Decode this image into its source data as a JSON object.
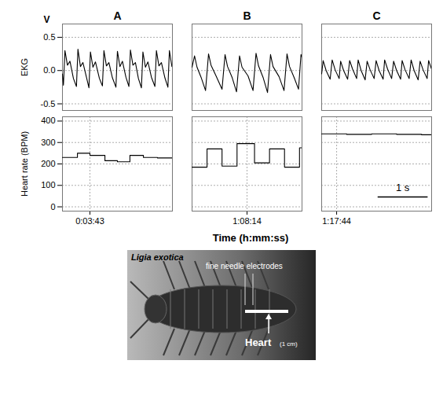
{
  "chart_data": [
    {
      "type": "line",
      "title": "A",
      "ylabel": "EKG",
      "annotations": [
        "V"
      ],
      "color": "#000000",
      "line_style": "solid",
      "grid": true,
      "tick_labels": "y",
      "xlim": [
        0,
        2.2
      ],
      "ylim": [
        -0.6,
        0.7
      ],
      "yticks": [
        -0.5,
        {
          "value": 0,
          "label": "0.0"
        },
        0.5
      ],
      "x": [
        0.0,
        0.02,
        0.05,
        0.1,
        0.15,
        0.22,
        0.28,
        0.31,
        0.36,
        0.41,
        0.48,
        0.53,
        0.56,
        0.61,
        0.66,
        0.74,
        0.8,
        0.83,
        0.88,
        0.93,
        1.0,
        1.07,
        1.1,
        1.15,
        1.2,
        1.27,
        1.33,
        1.36,
        1.41,
        1.46,
        1.52,
        1.58,
        1.61,
        1.66,
        1.71,
        1.78,
        1.85,
        1.88,
        1.93,
        1.98,
        2.05,
        2.11,
        2.14,
        2.19,
        2.2
      ],
      "values": [
        -0.05,
        -0.22,
        0.3,
        0.08,
        0.14,
        -0.12,
        -0.24,
        0.32,
        0.06,
        0.12,
        -0.1,
        -0.26,
        0.28,
        0.05,
        0.13,
        -0.12,
        -0.23,
        0.3,
        0.07,
        0.12,
        -0.11,
        -0.25,
        0.29,
        0.06,
        0.14,
        -0.1,
        -0.24,
        0.31,
        0.08,
        0.12,
        -0.12,
        -0.26,
        0.28,
        0.05,
        0.13,
        -0.1,
        -0.24,
        0.3,
        0.07,
        0.12,
        -0.11,
        -0.25,
        0.3,
        0.06,
        0.08
      ]
    },
    {
      "type": "line",
      "title": "B",
      "color": "#000000",
      "line_style": "solid",
      "grid": true,
      "tick_labels": false,
      "xlim": [
        0,
        2.2
      ],
      "ylim": [
        -0.6,
        0.7
      ],
      "yticks": [
        -0.5,
        {
          "value": 0,
          "label": "0.0"
        },
        0.5
      ],
      "x": [
        0.0,
        0.05,
        0.1,
        0.18,
        0.27,
        0.33,
        0.38,
        0.48,
        0.6,
        0.66,
        0.71,
        0.8,
        0.89,
        0.95,
        1.0,
        1.12,
        1.22,
        1.28,
        1.33,
        1.42,
        1.51,
        1.57,
        1.62,
        1.74,
        1.84,
        1.9,
        1.95,
        2.04,
        2.13,
        2.18,
        2.2
      ],
      "values": [
        0.05,
        0.22,
        0.05,
        -0.1,
        -0.3,
        0.25,
        0.08,
        -0.08,
        -0.28,
        0.24,
        0.06,
        -0.1,
        -0.32,
        0.22,
        0.05,
        -0.08,
        -0.3,
        0.26,
        0.07,
        -0.1,
        -0.33,
        0.24,
        0.06,
        -0.09,
        -0.3,
        0.25,
        0.06,
        -0.1,
        -0.28,
        0.24,
        0.2
      ]
    },
    {
      "type": "line",
      "title": "C",
      "color": "#000000",
      "line_style": "solid",
      "grid": true,
      "tick_labels": false,
      "xlim": [
        0,
        2.2
      ],
      "ylim": [
        -0.6,
        0.7
      ],
      "yticks": [
        -0.5,
        {
          "value": 0,
          "label": "0.0"
        },
        0.5
      ],
      "x": [
        0.0,
        0.03,
        0.09,
        0.17,
        0.21,
        0.27,
        0.35,
        0.38,
        0.44,
        0.52,
        0.56,
        0.62,
        0.7,
        0.73,
        0.79,
        0.87,
        0.91,
        0.97,
        1.05,
        1.09,
        1.15,
        1.23,
        1.26,
        1.32,
        1.4,
        1.44,
        1.5,
        1.58,
        1.61,
        1.67,
        1.75,
        1.79,
        1.85,
        1.93,
        1.97,
        2.03,
        2.11,
        2.14,
        2.2
      ],
      "values": [
        -0.05,
        0.15,
        0.0,
        -0.13,
        0.16,
        0.01,
        -0.12,
        0.14,
        0.0,
        -0.13,
        0.15,
        0.02,
        -0.12,
        0.16,
        0.0,
        -0.14,
        0.14,
        0.01,
        -0.12,
        0.15,
        0.0,
        -0.13,
        0.16,
        0.02,
        -0.12,
        0.14,
        0.0,
        -0.13,
        0.15,
        0.01,
        -0.12,
        0.16,
        0.0,
        -0.14,
        0.14,
        0.01,
        -0.12,
        0.15,
        0.02
      ]
    },
    {
      "type": "line",
      "ylabel": "Heart rate (BPM)",
      "color": "#000000",
      "line_style": "step",
      "grid": true,
      "xlim": [
        0,
        2.2
      ],
      "ylim": [
        -20,
        420
      ],
      "yticks": [
        0,
        100,
        200,
        300,
        400
      ],
      "xticks": [
        {
          "value": 0.55,
          "label": "0:03:43"
        }
      ],
      "x": [
        0,
        0.3,
        0.55,
        0.85,
        1.1,
        1.35,
        1.62,
        1.9,
        2.2
      ],
      "values": [
        230,
        250,
        240,
        215,
        210,
        240,
        230,
        228,
        228
      ]
    },
    {
      "type": "line",
      "color": "#000000",
      "line_style": "step",
      "grid": true,
      "tick_labels": "x",
      "xlim": [
        0,
        2.2
      ],
      "ylim": [
        -20,
        420
      ],
      "yticks": [
        0,
        100,
        200,
        300,
        400
      ],
      "xticks": [
        {
          "value": 1.1,
          "label": "1:08:14"
        }
      ],
      "x": [
        0,
        0.3,
        0.6,
        0.9,
        1.25,
        1.55,
        1.85,
        2.15,
        2.2
      ],
      "values": [
        185,
        270,
        190,
        295,
        205,
        270,
        185,
        275,
        275
      ]
    },
    {
      "type": "line",
      "color": "#000000",
      "line_style": "step",
      "grid": true,
      "tick_labels": "x",
      "xlim": [
        0,
        2.2
      ],
      "ylim": [
        -20,
        420
      ],
      "yticks": [
        0,
        100,
        200,
        300,
        400
      ],
      "xticks": [
        {
          "value": 0.3,
          "label": "1:17:44"
        }
      ],
      "x": [
        0,
        0.5,
        1.0,
        1.5,
        2.0,
        2.2
      ],
      "values": [
        340,
        338,
        340,
        338,
        336,
        336
      ]
    }
  ],
  "figure": {
    "xlabel": "Time (h:mm:ss)",
    "scale_bar": {
      "value": 1,
      "label": "1 s"
    }
  },
  "photo": {
    "species": "Ligia exotica",
    "electrodes": "fine needle electrodes",
    "heart": "Heart",
    "scale": "(1 cm)"
  }
}
